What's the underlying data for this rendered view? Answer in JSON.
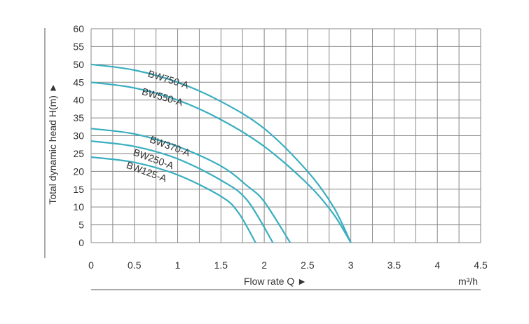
{
  "chart_data": {
    "type": "line",
    "title": "",
    "xlabel": "Flow rate Q ►",
    "xunit": "m³/h",
    "ylabel": "Total dynamic head H(m) ►",
    "xlim": [
      0,
      4.5
    ],
    "ylim": [
      0,
      60
    ],
    "grid": true,
    "x_ticks": [
      "0",
      "0.5",
      "1",
      "1.5",
      "2",
      "2.5",
      "3",
      "3.5",
      "4",
      "4.5"
    ],
    "y_ticks": [
      "0",
      "5",
      "10",
      "15",
      "20",
      "25",
      "30",
      "35",
      "40",
      "45",
      "50",
      "55",
      "60"
    ],
    "series_color": "#3aaec0",
    "series": [
      {
        "name": "BW750-A",
        "x": [
          0,
          0.5,
          1,
          1.5,
          2,
          2.5,
          2.8,
          3.0
        ],
        "y": [
          50,
          48.4,
          45,
          39.6,
          32,
          20,
          10,
          0
        ]
      },
      {
        "name": "BW550-A",
        "x": [
          0,
          0.5,
          1,
          1.5,
          2,
          2.5,
          2.8,
          3.0
        ],
        "y": [
          45,
          43.4,
          40,
          34.5,
          27,
          16.5,
          8,
          0
        ]
      },
      {
        "name": "BW370-A",
        "x": [
          0,
          0.5,
          1,
          1.5,
          1.8,
          2.0,
          2.3
        ],
        "y": [
          32,
          30.5,
          27,
          21.5,
          16,
          11.5,
          0
        ]
      },
      {
        "name": "BW250-A",
        "x": [
          0,
          0.5,
          1,
          1.5,
          1.8,
          2.1
        ],
        "y": [
          28.5,
          27,
          23.5,
          17.5,
          12,
          0
        ]
      },
      {
        "name": "BW125-A",
        "x": [
          0,
          0.5,
          1,
          1.5,
          1.7,
          1.9
        ],
        "y": [
          24,
          22.5,
          19,
          13,
          8.5,
          0
        ]
      }
    ]
  }
}
